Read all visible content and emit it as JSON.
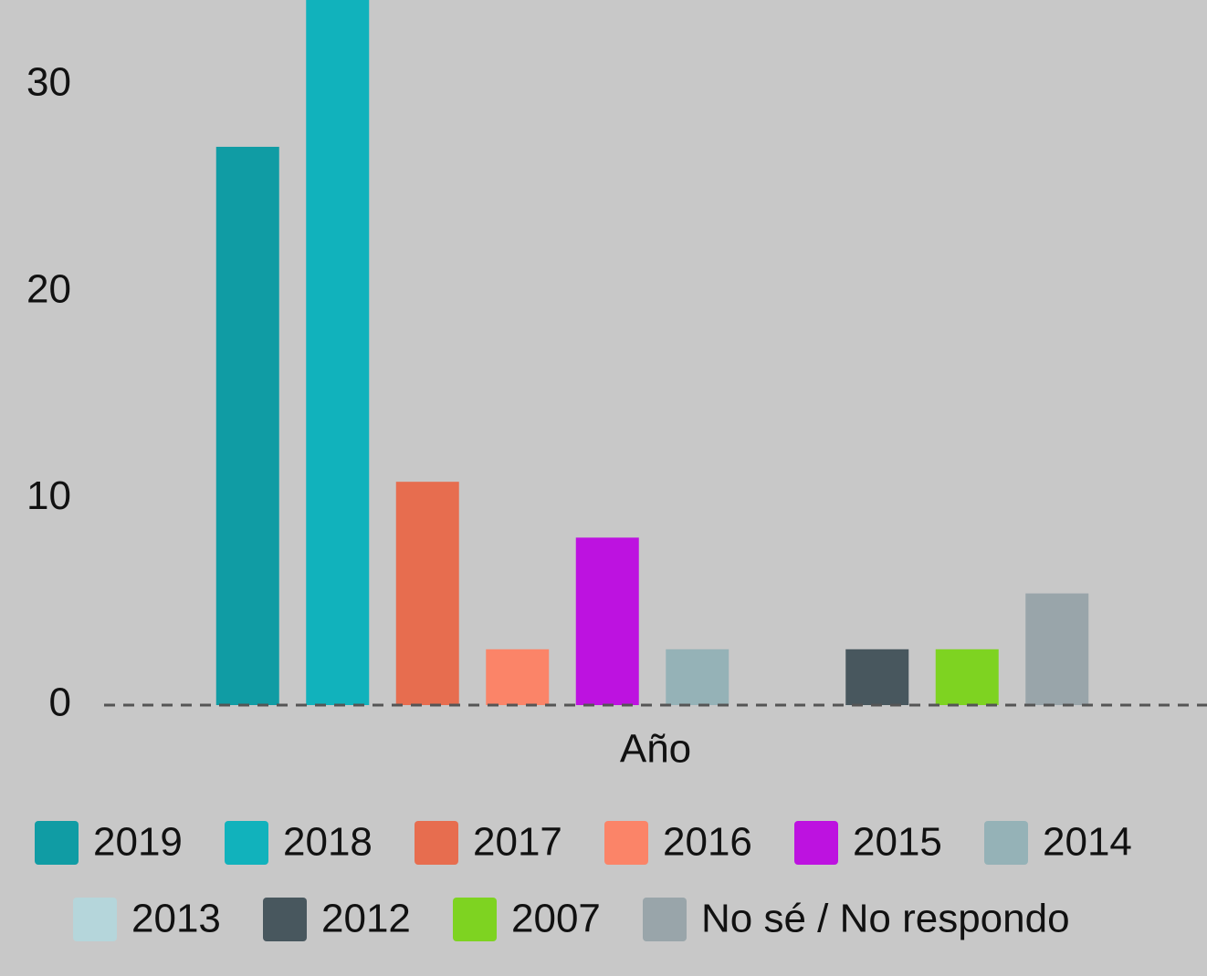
{
  "chart_data": {
    "type": "bar",
    "x_label": "Año",
    "categories": [
      "2019",
      "2018",
      "2017",
      "2016",
      "2015",
      "2014",
      "2013",
      "2012",
      "2007",
      "No sé / No respondo"
    ],
    "values": [
      27.0,
      37.8,
      10.8,
      2.7,
      8.1,
      2.7,
      0,
      2.7,
      2.7,
      5.4
    ],
    "colors": [
      "#109ca4",
      "#11b2bc",
      "#e76d4f",
      "#fb8468",
      "#bd12e0",
      "#95b2b7",
      "#b5d6db",
      "#48575e",
      "#7ed321",
      "#99a5aa"
    ],
    "ylim": [
      0,
      34.1
    ],
    "yticks": [
      0,
      10,
      20,
      30
    ],
    "legend": "bottom"
  }
}
